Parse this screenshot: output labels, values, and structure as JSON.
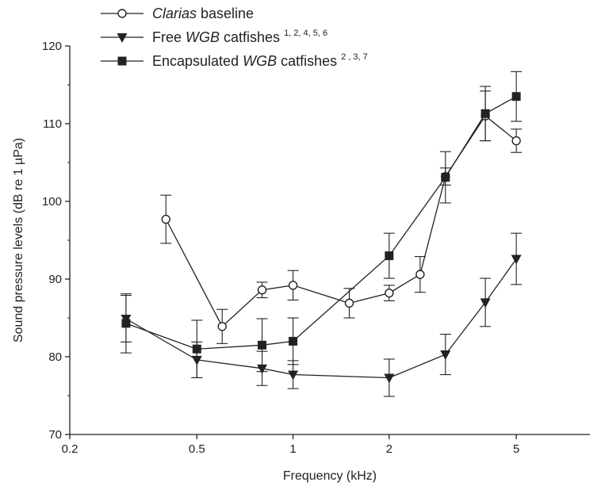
{
  "chart_data": {
    "type": "line",
    "xscale": "log",
    "xlim": [
      0.2,
      8.5
    ],
    "ylim": [
      70,
      120
    ],
    "xlabel": "Frequency (kHz)",
    "ylabel": "Sound pressure levels (dB re 1 µPa)",
    "xticks": [
      0.2,
      0.5,
      1,
      2,
      5
    ],
    "xtick_labels": [
      "0.2",
      "0.5",
      "1",
      "2",
      "5"
    ],
    "yticks": [
      70,
      80,
      90,
      100,
      110,
      120
    ],
    "ytick_labels": [
      "70",
      "80",
      "90",
      "100",
      "110",
      "120"
    ],
    "grid": false,
    "legend_position": "top-left",
    "series": [
      {
        "legend_parts": [
          {
            "text": "Clarias",
            "italic": true
          },
          {
            "text": " baseline"
          }
        ],
        "marker": "open-circle",
        "color": "#222222",
        "points": [
          {
            "x": 0.4,
            "y": 97.7,
            "err": 3.1
          },
          {
            "x": 0.6,
            "y": 83.9,
            "err": 2.2
          },
          {
            "x": 0.8,
            "y": 88.6,
            "err": 1.0
          },
          {
            "x": 1.0,
            "y": 89.2,
            "err": 1.9
          },
          {
            "x": 1.5,
            "y": 86.9,
            "err": 1.9
          },
          {
            "x": 2.0,
            "y": 88.2,
            "err": 1.0
          },
          {
            "x": 2.5,
            "y": 90.6,
            "err": 2.3
          },
          {
            "x": 3.0,
            "y": 103.2,
            "err": 1.1
          },
          {
            "x": 4.0,
            "y": 111.0,
            "err": 3.2
          },
          {
            "x": 5.0,
            "y": 107.8,
            "err": 1.5
          }
        ]
      },
      {
        "legend_parts": [
          {
            "text": "Free "
          },
          {
            "text": "WGB",
            "italic": true
          },
          {
            "text": " catfishes "
          },
          {
            "text": "1, 2, 4, 5, 6",
            "sup": true
          }
        ],
        "marker": "filled-triangle-down",
        "color": "#222222",
        "points": [
          {
            "x": 0.3,
            "y": 84.9,
            "err": 3.0
          },
          {
            "x": 0.5,
            "y": 79.6,
            "err": 2.3
          },
          {
            "x": 0.8,
            "y": 78.5,
            "err": 2.2
          },
          {
            "x": 1.0,
            "y": 77.7,
            "err": 1.8
          },
          {
            "x": 2.0,
            "y": 77.3,
            "err": 2.4
          },
          {
            "x": 3.0,
            "y": 80.3,
            "err": 2.6
          },
          {
            "x": 4.0,
            "y": 87.0,
            "err": 3.1
          },
          {
            "x": 5.0,
            "y": 92.6,
            "err": 3.3
          }
        ]
      },
      {
        "legend_parts": [
          {
            "text": "Encapsulated "
          },
          {
            "text": "WGB",
            "italic": true
          },
          {
            "text": " catfishes "
          },
          {
            "text": "2 , 3, 7",
            "sup": true
          }
        ],
        "marker": "filled-square",
        "color": "#222222",
        "points": [
          {
            "x": 0.3,
            "y": 84.3,
            "err": 3.8
          },
          {
            "x": 0.5,
            "y": 81.0,
            "err": 3.7
          },
          {
            "x": 0.8,
            "y": 81.5,
            "err": 3.4
          },
          {
            "x": 1.0,
            "y": 82.0,
            "err": 3.0
          },
          {
            "x": 2.0,
            "y": 93.0,
            "err": 2.9
          },
          {
            "x": 3.0,
            "y": 103.1,
            "err": 3.3
          },
          {
            "x": 4.0,
            "y": 111.3,
            "err": 3.5
          },
          {
            "x": 5.0,
            "y": 113.5,
            "err": 3.2
          }
        ]
      }
    ]
  }
}
